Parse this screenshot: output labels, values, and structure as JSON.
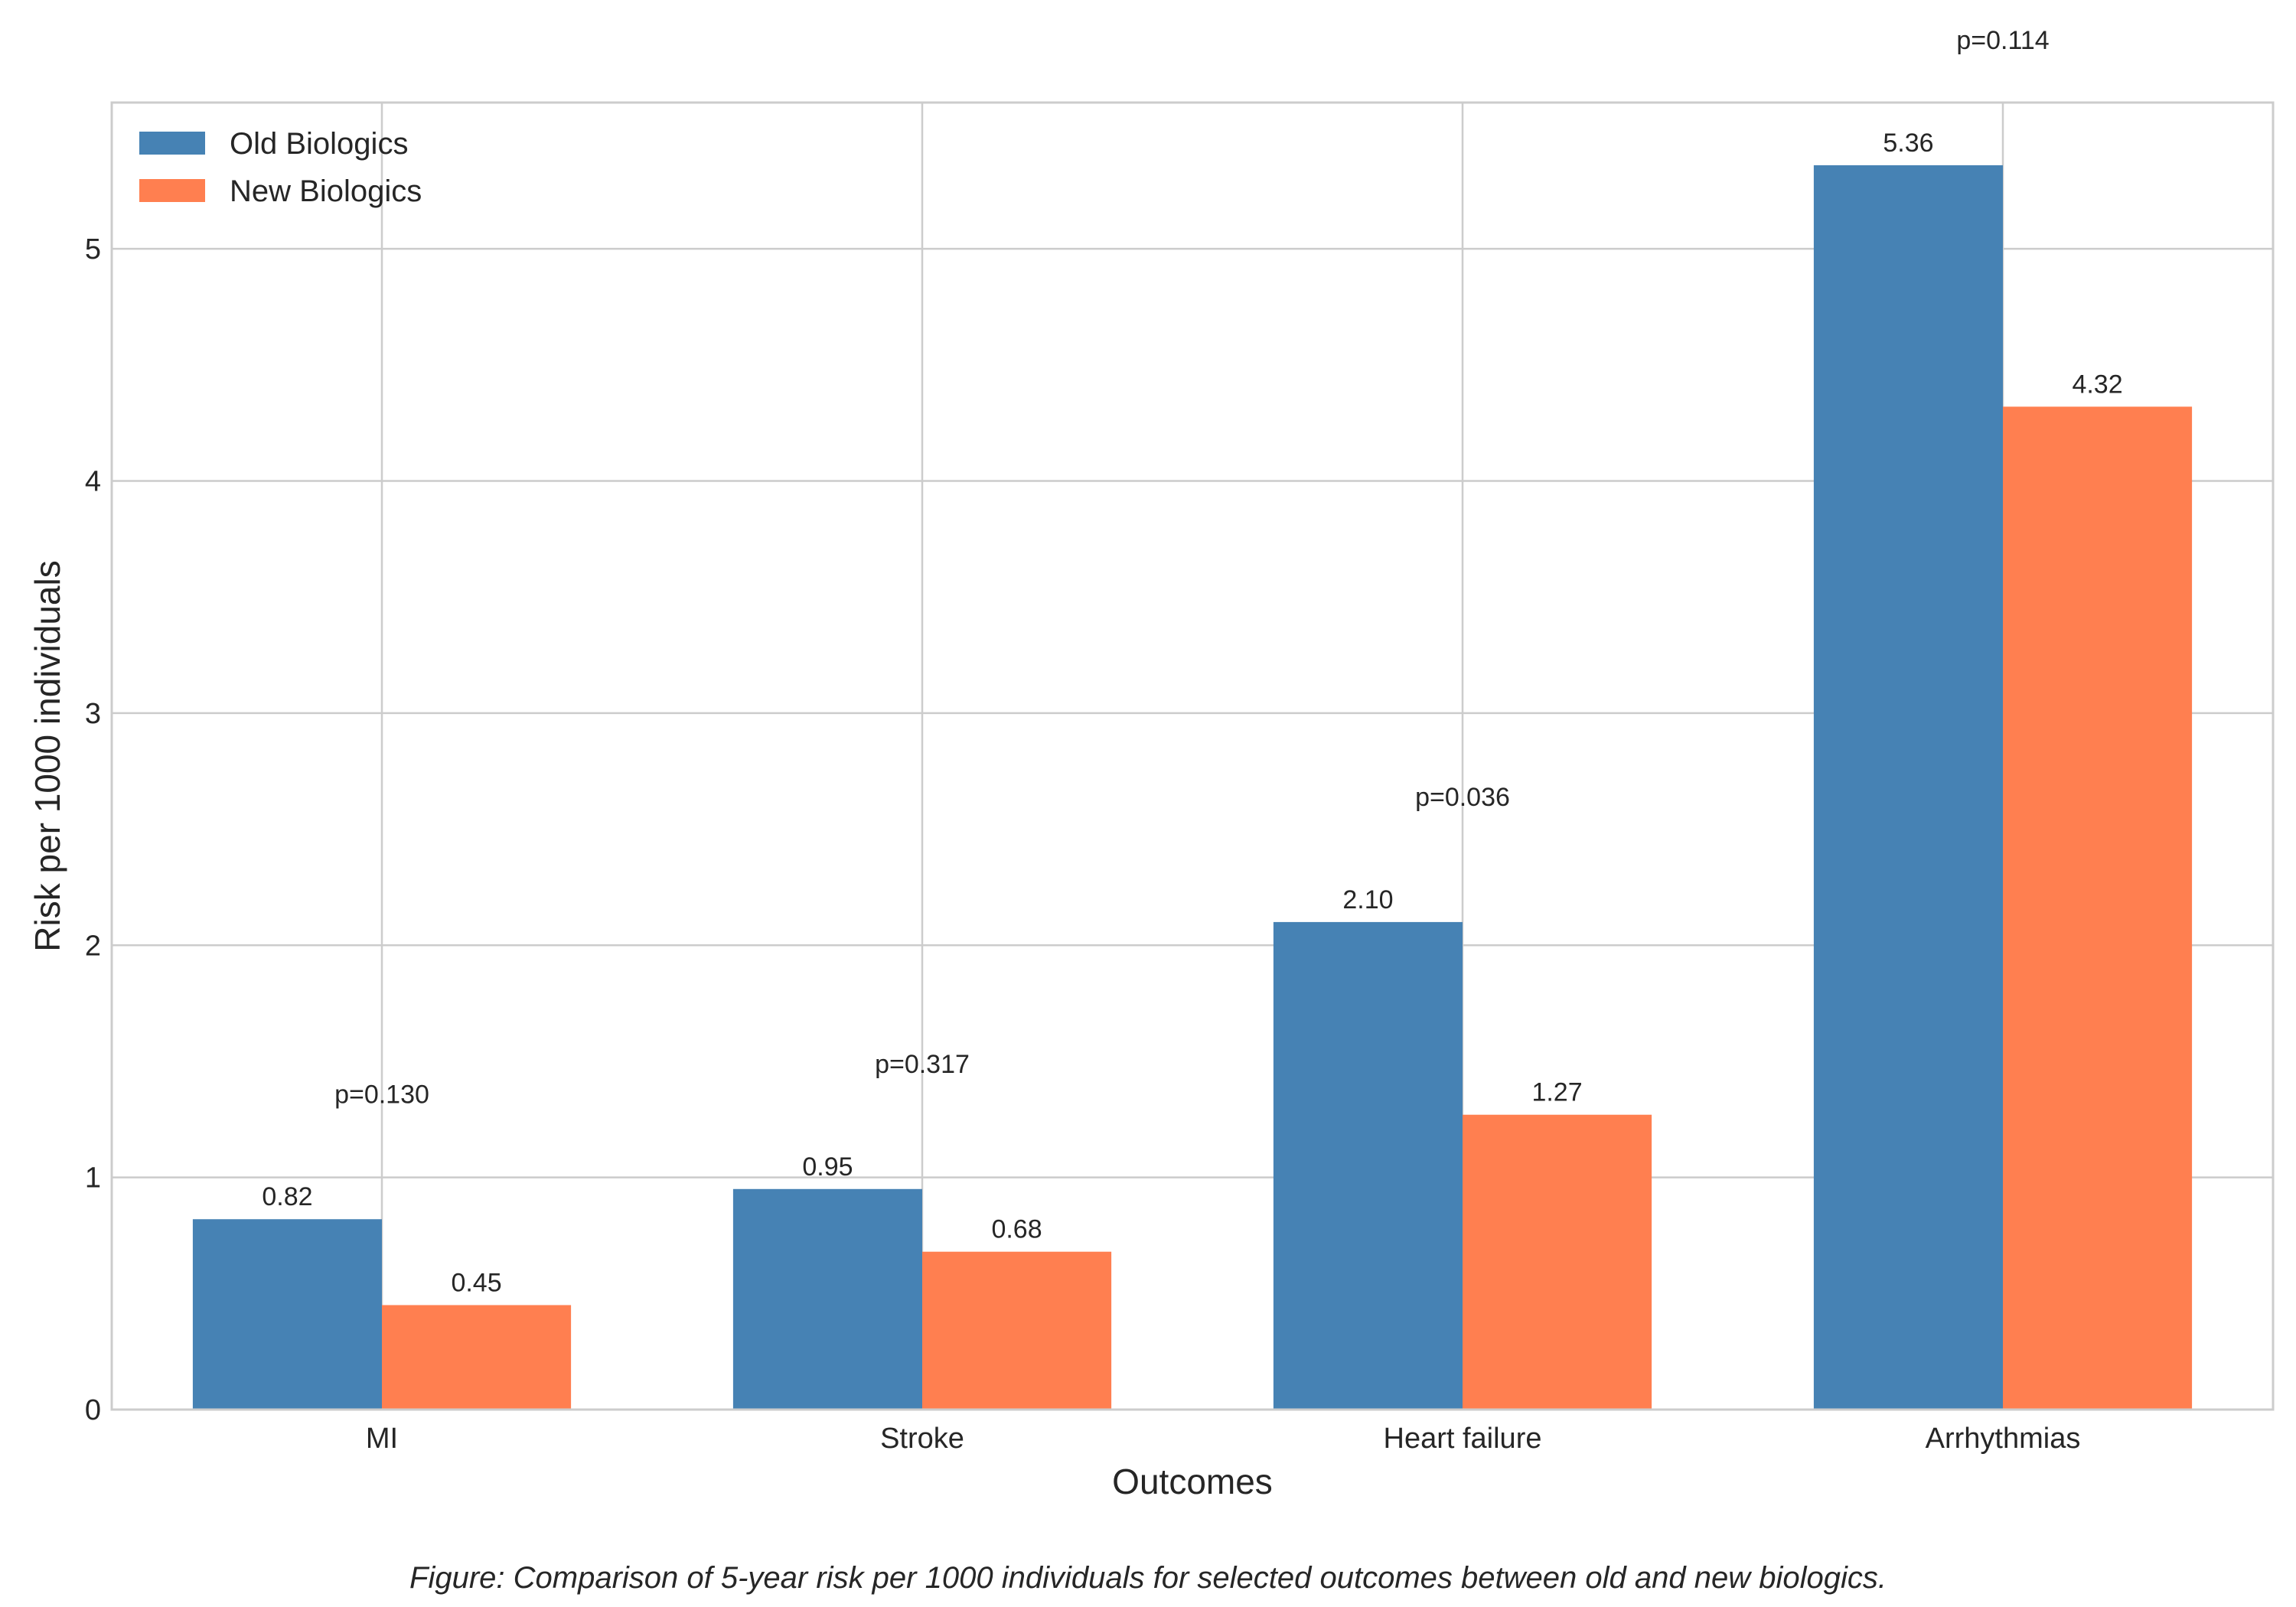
{
  "chart_data": {
    "type": "bar",
    "title": "",
    "xlabel": "Outcomes",
    "ylabel": "Risk per 1000 individuals",
    "categories": [
      "MI",
      "Stroke",
      "Heart failure",
      "Arrhythmias"
    ],
    "series": [
      {
        "name": "Old Biologics",
        "values": [
          0.82,
          0.95,
          2.1,
          5.36
        ],
        "labels": [
          "0.82",
          "0.95",
          "2.10",
          "5.36"
        ],
        "color": "#4682b4"
      },
      {
        "name": "New Biologics",
        "values": [
          0.45,
          0.68,
          1.27,
          4.32
        ],
        "labels": [
          "0.45",
          "0.68",
          "1.27",
          "4.32"
        ],
        "color": "#ff7f50"
      }
    ],
    "annotations": [
      {
        "category": "MI",
        "text": "p=0.130",
        "y": 1.32
      },
      {
        "category": "Stroke",
        "text": "p=0.317",
        "y": 1.45
      },
      {
        "category": "Heart failure",
        "text": "p=0.036",
        "y": 2.6
      },
      {
        "category": "Arrhythmias",
        "text": "p=0.114",
        "y": 5.86
      }
    ],
    "ylim": [
      0,
      5.63
    ],
    "yticks": [
      0,
      1,
      2,
      3,
      4,
      5
    ],
    "grid": true,
    "legend_position": "top-left"
  },
  "caption": "Figure: Comparison of 5-year risk per 1000 individuals for selected outcomes between old and new biologics."
}
